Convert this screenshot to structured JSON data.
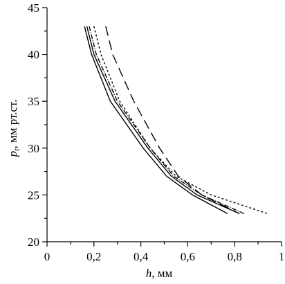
{
  "chart_data": {
    "type": "line",
    "x_label": {
      "symbol": "h",
      "unit": ", мм"
    },
    "y_label": {
      "symbol": "p",
      "subscript": "t",
      "unit": ", мм рт.ст."
    },
    "xlim": [
      0,
      1
    ],
    "xticks": [
      0,
      {
        "value": 0.2,
        "label": "0,2"
      },
      {
        "value": 0.4,
        "label": "0,4"
      },
      {
        "value": 0.6,
        "label": "0,6"
      },
      {
        "value": 0.8,
        "label": "0,8"
      },
      1
    ],
    "xminorticks": [
      0.1,
      0.3,
      0.5,
      0.7,
      0.9
    ],
    "ylim": [
      20,
      45
    ],
    "yticks": [
      20,
      25,
      30,
      35,
      40,
      45
    ],
    "yminorticks": [
      22.5,
      27.5,
      32.5,
      37.5,
      42.5
    ],
    "grid": false,
    "series": [
      {
        "color": "#000000",
        "dash": "none",
        "x": [
          0.16,
          0.19,
          0.27,
          0.41,
          0.51,
          0.62,
          0.77
        ],
        "values": [
          43,
          40,
          35,
          30,
          27,
          25,
          23
        ]
      },
      {
        "color": "#000000",
        "dash": "none",
        "x": [
          0.17,
          0.2,
          0.29,
          0.43,
          0.53,
          0.64,
          0.82
        ],
        "values": [
          43,
          40,
          35,
          30,
          27,
          25,
          23
        ]
      },
      {
        "color": "#000000",
        "dash": "7 2 1 2",
        "x": [
          0.18,
          0.21,
          0.3,
          0.44,
          0.54,
          0.66,
          0.84
        ],
        "values": [
          43,
          40,
          35,
          30,
          27,
          25,
          23
        ]
      },
      {
        "color": "#000000",
        "dash": "3 3",
        "x": [
          0.2,
          0.23,
          0.31,
          0.44,
          0.55,
          0.7,
          0.94
        ],
        "values": [
          43,
          40,
          35,
          30,
          27,
          25,
          23
        ]
      },
      {
        "color": "#000000",
        "dash": "14 7",
        "x": [
          0.25,
          0.28,
          0.37,
          0.48,
          0.56,
          0.66,
          0.82
        ],
        "values": [
          43,
          40,
          35,
          30,
          27,
          25,
          23
        ]
      }
    ]
  }
}
